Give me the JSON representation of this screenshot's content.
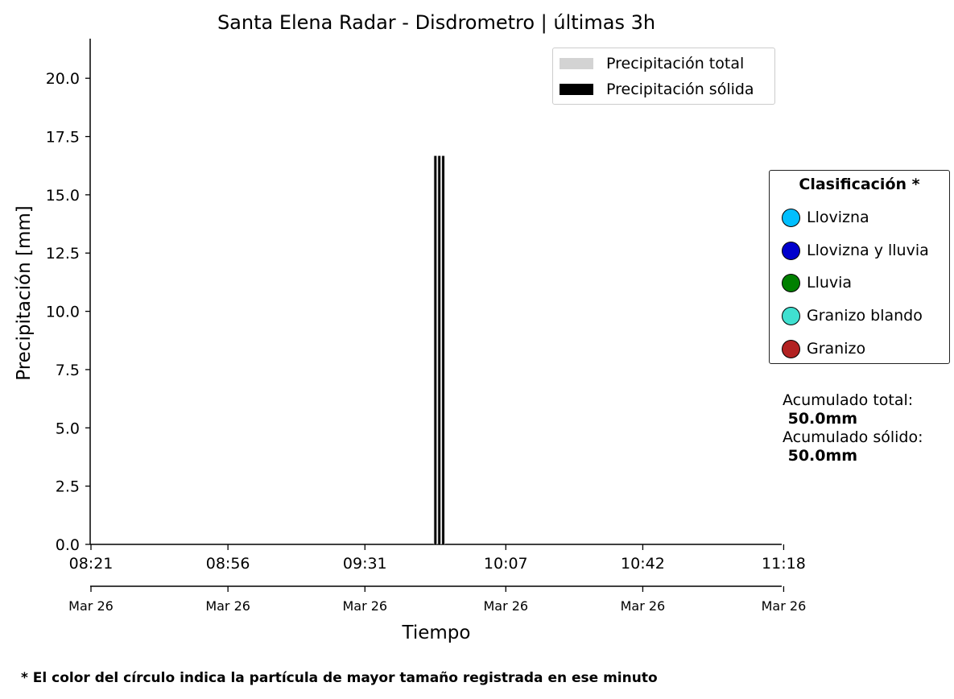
{
  "chart_data": {
    "type": "bar",
    "title": "Santa Elena Radar - Disdrometro  |  últimas 3h",
    "xlabel": "Tiempo",
    "ylabel": "Precipitación [mm]",
    "ylim": [
      0,
      21.7
    ],
    "yticks": [
      "0.0",
      "2.5",
      "5.0",
      "7.5",
      "10.0",
      "12.5",
      "15.0",
      "17.5",
      "20.0"
    ],
    "ytick_values": [
      0,
      2.5,
      5,
      7.5,
      10,
      12.5,
      15,
      17.5,
      20
    ],
    "xlim_minutes": [
      0,
      176.5
    ],
    "xticks_time": [
      "08:21",
      "08:56",
      "09:31",
      "10:07",
      "10:42",
      "11:18"
    ],
    "xticks_date": [
      "Mar 26",
      "Mar 26",
      "Mar 26",
      "Mar 26",
      "Mar 26",
      "Mar 26"
    ],
    "xtick_minutes": [
      0,
      35,
      70,
      106,
      141,
      177
    ],
    "series": [
      {
        "name": "Precipitación total",
        "color": "#d3d3d3",
        "x": [
          "09:49",
          "09:50",
          "09:51"
        ],
        "values": [
          16.67,
          16.67,
          16.67
        ]
      },
      {
        "name": "Precipitación sólida",
        "color": "#000000",
        "x": [
          "09:49",
          "09:50",
          "09:51"
        ],
        "values": [
          16.67,
          16.67,
          16.67
        ]
      }
    ],
    "bar_minutes": [
      88,
      89,
      90
    ],
    "grid": false,
    "legend_placement": "top-right"
  },
  "legend": {
    "items": [
      {
        "label": "Precipitación total",
        "color": "#d3d3d3"
      },
      {
        "label": "Precipitación sólida",
        "color": "#000000"
      }
    ]
  },
  "classification": {
    "title": "Clasificación *",
    "items": [
      {
        "label": "Llovizna",
        "color": "#00bfff"
      },
      {
        "label": "Llovizna y lluvia",
        "color": "#0000cd"
      },
      {
        "label": "Lluvia",
        "color": "#008000"
      },
      {
        "label": "Granizo blando",
        "color": "#40e0d0"
      },
      {
        "label": "Granizo",
        "color": "#b22222"
      }
    ]
  },
  "accumulated": {
    "total_label": "Acumulado total:",
    "total_value": " 50.0mm",
    "solid_label": "Acumulado sólido:",
    "solid_value": " 50.0mm"
  },
  "footnote": "* El color del círculo indica la partícula de mayor tamaño registrada en ese minuto"
}
